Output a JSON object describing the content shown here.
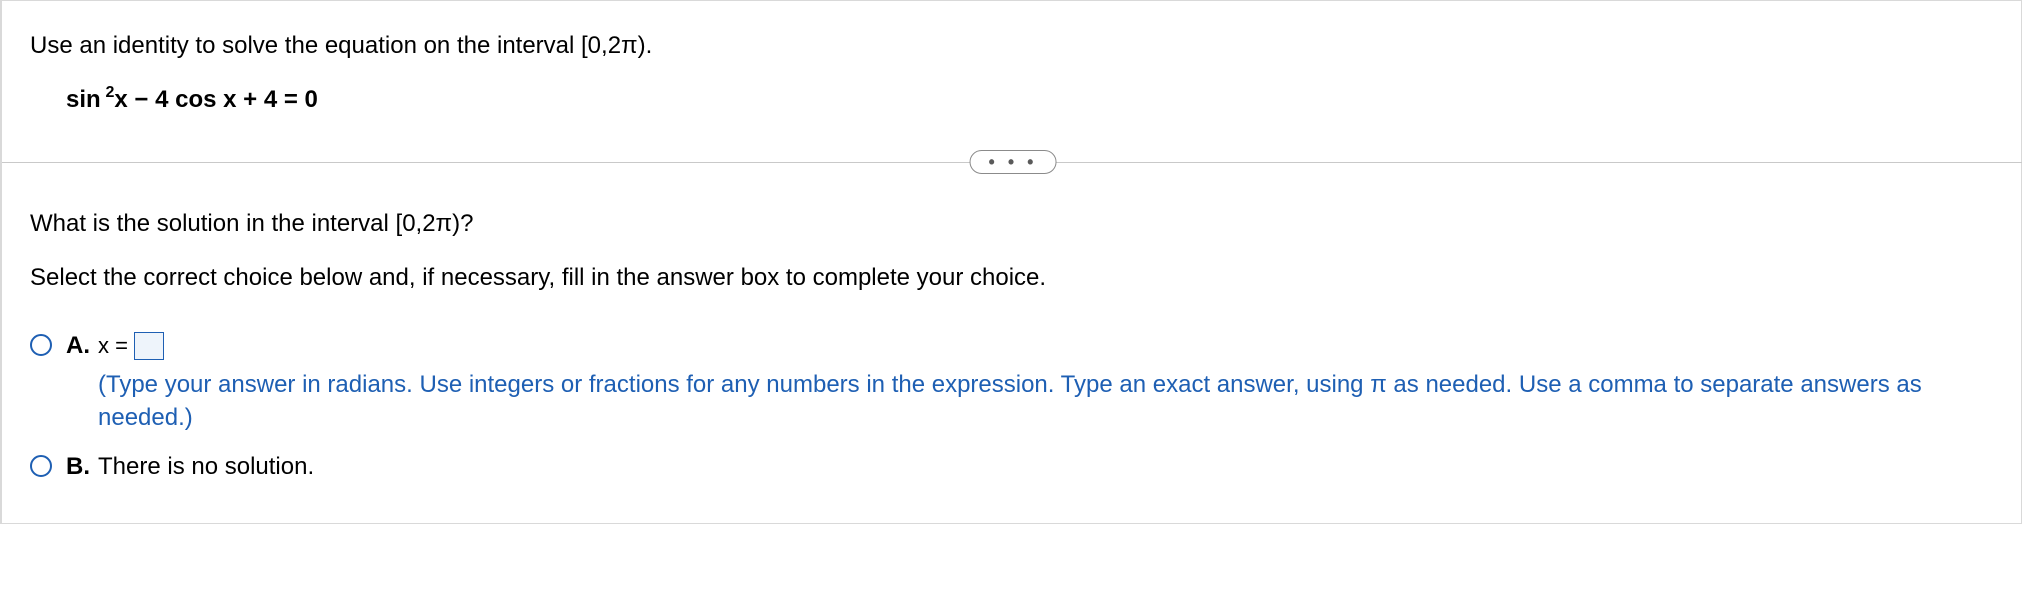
{
  "question": {
    "prompt": "Use an identity to solve the equation on the interval [0,2π).",
    "equation_html": "sin <sup>2</sup>x − 4 cos x + 4 = 0",
    "followup": "What is the solution in the interval [0,2π)?",
    "instruction": "Select the correct choice below and, if necessary, fill in the answer box to complete your choice."
  },
  "divider": {
    "dots": "• • •"
  },
  "options": {
    "a": {
      "letter": "A.",
      "lead": "x =",
      "input_value": "",
      "hint": "(Type your answer in radians. Use integers or fractions for any numbers in the expression. Type an exact answer, using π as needed. Use a comma to separate answers as needed.)"
    },
    "b": {
      "letter": "B.",
      "text": "There is no solution."
    }
  },
  "colors": {
    "accent": "#1e5fb3",
    "border": "#d9d9d9",
    "pill_border": "#8b8b8b",
    "input_fill": "#eef4fb"
  }
}
